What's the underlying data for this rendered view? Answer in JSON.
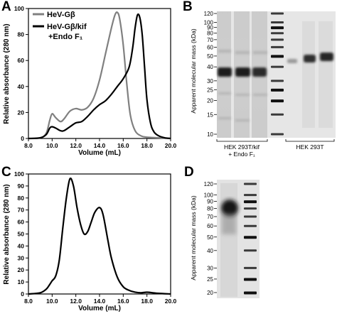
{
  "panels": {
    "A": "A",
    "B": "B",
    "C": "C",
    "D": "D"
  },
  "chart_data": [
    {
      "panel": "A",
      "type": "line",
      "xlabel": "Volume (mL)",
      "ylabel": "Relative absorbance (280 nm)",
      "xlim": [
        8.0,
        20.0
      ],
      "ylim": [
        0,
        100
      ],
      "xticks": [
        "8.0",
        "10.0",
        "12.0",
        "14.0",
        "16.0",
        "18.0",
        "20.0"
      ],
      "yticks": [
        "0",
        "20",
        "40",
        "60",
        "80",
        "100"
      ],
      "legend_position": "top-left",
      "series": [
        {
          "name": "HeV-Gβ",
          "color": "#808080",
          "x": [
            8.0,
            9.0,
            9.5,
            9.8,
            10.0,
            10.3,
            10.7,
            11.0,
            11.5,
            12.0,
            12.5,
            13.0,
            13.5,
            14.0,
            14.5,
            15.0,
            15.3,
            15.5,
            15.7,
            16.0,
            16.3,
            16.6,
            17.0,
            17.5,
            18.0,
            19.0,
            20.0
          ],
          "y": [
            0,
            0.5,
            4,
            14,
            19,
            16,
            13,
            15,
            21,
            23,
            22,
            24,
            31,
            45,
            65,
            85,
            95,
            97,
            92,
            72,
            42,
            18,
            6,
            2,
            1,
            0.5,
            0
          ]
        },
        {
          "name": "HeV-Gβ/kif +Endo F₁",
          "color": "#000000",
          "x": [
            8.0,
            9.0,
            9.5,
            9.8,
            10.0,
            10.3,
            10.7,
            11.0,
            11.5,
            12.0,
            12.5,
            13.0,
            13.5,
            14.0,
            14.5,
            15.0,
            15.5,
            16.0,
            16.5,
            16.8,
            17.0,
            17.2,
            17.4,
            17.6,
            17.8,
            18.0,
            18.3,
            18.6,
            19.0,
            19.5,
            20.0
          ],
          "y": [
            0,
            0.5,
            3,
            8,
            9,
            8,
            6,
            6,
            9,
            12,
            13,
            17,
            22,
            26,
            29,
            34,
            40,
            46,
            55,
            70,
            85,
            95,
            93,
            80,
            55,
            30,
            12,
            5,
            2,
            0.5,
            0
          ]
        }
      ]
    },
    {
      "panel": "C",
      "type": "line",
      "xlabel": "Volume (mL)",
      "ylabel": "Relative absorbance (280 nm)",
      "xlim": [
        8.0,
        20.0
      ],
      "ylim": [
        0,
        100
      ],
      "xticks": [
        "8.0",
        "10.0",
        "12.0",
        "14.0",
        "16.0",
        "18.0",
        "20.0"
      ],
      "yticks": [
        "0",
        "10",
        "20",
        "30",
        "40",
        "50",
        "60",
        "70",
        "80",
        "90",
        "100"
      ],
      "series": [
        {
          "color": "#000000",
          "x": [
            8.0,
            9.0,
            9.5,
            9.8,
            10.0,
            10.3,
            10.6,
            10.9,
            11.2,
            11.5,
            11.8,
            12.1,
            12.4,
            12.7,
            13.0,
            13.3,
            13.6,
            14.0,
            14.3,
            14.7,
            15.0,
            15.5,
            16.0,
            16.5,
            17.0,
            17.5,
            18.0,
            18.5,
            19.0,
            20.0
          ],
          "y": [
            0,
            1,
            4,
            8,
            11,
            15,
            28,
            55,
            80,
            96,
            90,
            72,
            58,
            50,
            52,
            60,
            68,
            72,
            66,
            45,
            30,
            14,
            6,
            3,
            1.5,
            1,
            1.5,
            1,
            0.5,
            0
          ]
        }
      ]
    }
  ],
  "gelB": {
    "ylabel": "Apparent molecular mass (kDa)",
    "markers": [
      "120",
      "100",
      "90",
      "80",
      "70",
      "60",
      "50",
      "40",
      "30",
      "25",
      "20",
      "15",
      "10"
    ],
    "groups": [
      "HEK 293T/kif",
      "+ Endo F₁",
      "HEK 293T"
    ]
  },
  "gelD": {
    "ylabel": "Apparent molecular mass (kDa)",
    "markers": [
      "120",
      "100",
      "90",
      "80",
      "70",
      "60",
      "50",
      "40",
      "30",
      "25",
      "20"
    ]
  }
}
